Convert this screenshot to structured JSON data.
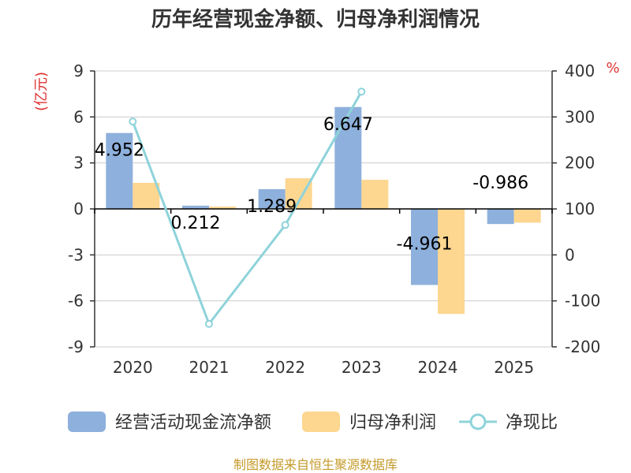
{
  "chart_data": {
    "type": "bar",
    "title": "历年经营现金净额、归母净利润情况",
    "categories": [
      "2020",
      "2021",
      "2022",
      "2023",
      "2024",
      "2025"
    ],
    "left_axis": {
      "unit_label": "(亿元)",
      "ylim": [
        -9,
        9
      ],
      "ticks": [
        "9",
        "6",
        "3",
        "0",
        "-3",
        "-6",
        "-9"
      ],
      "tick_values": [
        9,
        6,
        3,
        0,
        -3,
        -6,
        -9
      ]
    },
    "right_axis": {
      "unit_label": "%",
      "ylim": [
        -200,
        400
      ],
      "ticks": [
        "400",
        "300",
        "200",
        "100",
        "0",
        "-100",
        "-200"
      ],
      "tick_values": [
        400,
        300,
        200,
        100,
        0,
        -100,
        -200
      ]
    },
    "series": [
      {
        "name": "经营活动现金流净额",
        "type": "bar",
        "axis": "left",
        "color": "#8eb0dc",
        "values": [
          4.952,
          0.212,
          1.289,
          6.647,
          -4.961,
          -0.986
        ],
        "labels": [
          "4.952",
          "0.212",
          "1.289",
          "6.647",
          "-4.961",
          "-0.986"
        ]
      },
      {
        "name": "归母净利润",
        "type": "bar",
        "axis": "left",
        "color": "#fdd690",
        "values": [
          1.7,
          0.15,
          2.0,
          1.9,
          -6.85,
          -0.9
        ]
      },
      {
        "name": "净现比",
        "type": "line",
        "axis": "right",
        "color": "#8ed3da",
        "values": [
          290,
          -150,
          65,
          355,
          null,
          null
        ]
      }
    ],
    "grid": true,
    "legend_position": "bottom"
  },
  "source_text": "制图数据来自恒生聚源数据库"
}
